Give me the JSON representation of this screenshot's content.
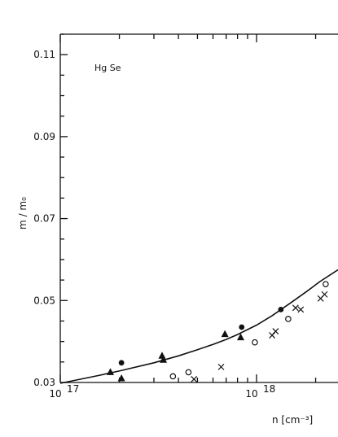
{
  "chart_data": {
    "type": "scatter",
    "title": "Hg Se",
    "xlabel": "n [cm⁻³]",
    "ylabel": "m / m₀",
    "x_scale": "log",
    "xlim": [
      1e+17,
      2.6e+18
    ],
    "ylim": [
      0.03,
      0.115
    ],
    "x_ticks": [
      {
        "value": 1e+17,
        "base": "10",
        "exp": "17"
      },
      {
        "value": 1e+18,
        "base": "10",
        "exp": "18"
      }
    ],
    "y_ticks": [
      "0.03",
      "0.05",
      "0.07",
      "0.09",
      "0.11"
    ],
    "y_tick_values": [
      0.03,
      0.05,
      0.07,
      0.09,
      0.11
    ],
    "grid": false,
    "legend": "none",
    "series": [
      {
        "marker": "triangle-filled",
        "points": [
          [
            1.8e+17,
            0.0325
          ],
          [
            2.05e+17,
            0.031
          ],
          [
            3.3e+17,
            0.0365
          ],
          [
            3.35e+17,
            0.0355
          ],
          [
            6.9e+17,
            0.0418
          ],
          [
            8.3e+17,
            0.041
          ]
        ]
      },
      {
        "marker": "circle-filled",
        "points": [
          [
            2.05e+17,
            0.0348
          ],
          [
            8.4e+17,
            0.0435
          ],
          [
            1.33e+18,
            0.0478
          ]
        ]
      },
      {
        "marker": "circle-open",
        "points": [
          [
            3.75e+17,
            0.0315
          ],
          [
            4.5e+17,
            0.0325
          ],
          [
            9.8e+17,
            0.0398
          ],
          [
            1.45e+18,
            0.0455
          ],
          [
            2.25e+18,
            0.054
          ]
        ]
      },
      {
        "marker": "cross",
        "points": [
          [
            4.8e+17,
            0.0308
          ],
          [
            6.6e+17,
            0.0338
          ],
          [
            1.2e+18,
            0.0415
          ],
          [
            1.25e+18,
            0.0425
          ],
          [
            1.58e+18,
            0.0482
          ],
          [
            1.68e+18,
            0.0478
          ],
          [
            2.12e+18,
            0.0505
          ],
          [
            2.22e+18,
            0.0515
          ]
        ]
      }
    ],
    "fit_curve": [
      [
        1e+17,
        0.0298
      ],
      [
        1.5e+17,
        0.0315
      ],
      [
        2e+17,
        0.0328
      ],
      [
        3e+17,
        0.0348
      ],
      [
        4e+17,
        0.0365
      ],
      [
        5e+17,
        0.038
      ],
      [
        6e+17,
        0.0393
      ],
      [
        7e+17,
        0.0405
      ],
      [
        8e+17,
        0.0417
      ],
      [
        1e+18,
        0.044
      ],
      [
        1.2e+18,
        0.0463
      ],
      [
        1.5e+18,
        0.0495
      ],
      [
        1.8e+18,
        0.0522
      ],
      [
        2.1e+18,
        0.0546
      ],
      [
        2.6e+18,
        0.0575
      ]
    ]
  }
}
